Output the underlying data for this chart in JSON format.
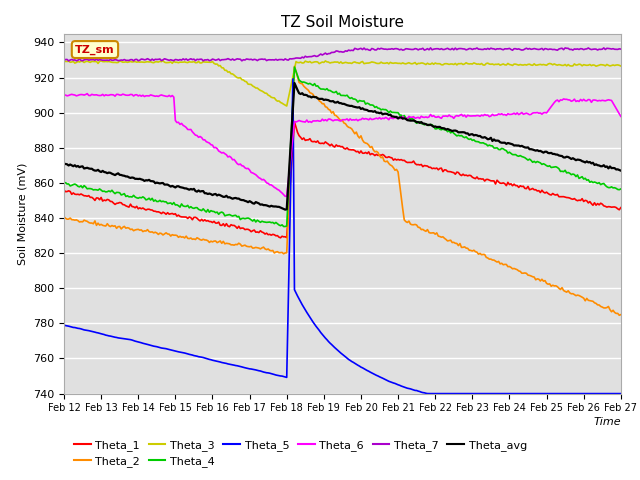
{
  "title": "TZ Soil Moisture",
  "xlabel": "Time",
  "ylabel": "Soil Moisture (mV)",
  "ylim": [
    740,
    945
  ],
  "xlim": [
    0,
    360
  ],
  "bg_color": "#e0e0e0",
  "legend_box_label": "TZ_sm",
  "series": {
    "Theta_1": {
      "color": "#ff0000"
    },
    "Theta_2": {
      "color": "#ff8c00"
    },
    "Theta_3": {
      "color": "#cccc00"
    },
    "Theta_4": {
      "color": "#00cc00"
    },
    "Theta_5": {
      "color": "#0000ff"
    },
    "Theta_6": {
      "color": "#ff00ff"
    },
    "Theta_7": {
      "color": "#aa00cc"
    },
    "Theta_avg": {
      "color": "#000000"
    }
  },
  "xtick_labels": [
    "Feb 12",
    "Feb 13",
    "Feb 14",
    "Feb 15",
    "Feb 16",
    "Feb 17",
    "Feb 18",
    "Feb 19",
    "Feb 20",
    "Feb 21",
    "Feb 22",
    "Feb 23",
    "Feb 24",
    "Feb 25",
    "Feb 26",
    "Feb 27"
  ],
  "xtick_positions": [
    0,
    24,
    48,
    72,
    96,
    120,
    144,
    168,
    192,
    216,
    240,
    264,
    288,
    312,
    336,
    360
  ],
  "ytick_positions": [
    740,
    760,
    780,
    800,
    820,
    840,
    860,
    880,
    900,
    920,
    940
  ]
}
